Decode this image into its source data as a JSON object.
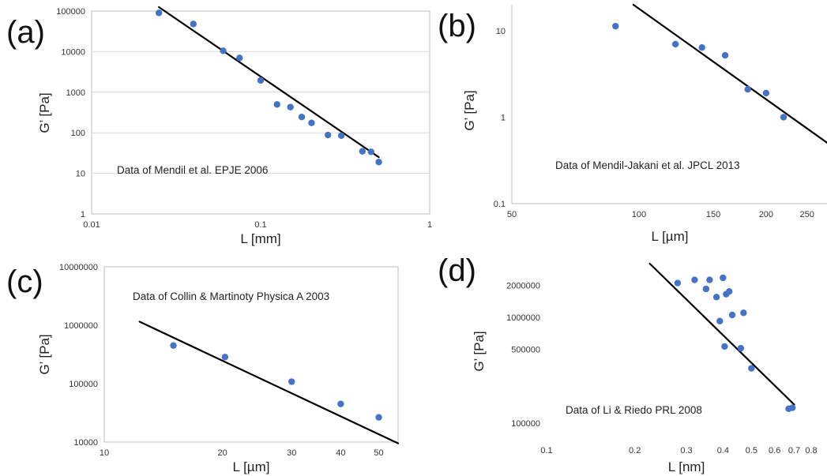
{
  "chart_data": [
    {
      "type": "scatter",
      "panel_label": "(a)",
      "xlabel": "L [mm]",
      "ylabel": "G’ [Pa]",
      "x_scale": "log",
      "y_scale": "log",
      "xlim": [
        0.01,
        1
      ],
      "ylim": [
        1,
        100000
      ],
      "x_ticks": [
        0.01,
        0.1,
        1
      ],
      "x_tick_labels": [
        "0.01",
        "0.1",
        "1"
      ],
      "y_ticks": [
        1,
        10,
        100,
        1000,
        10000,
        100000
      ],
      "y_tick_labels": [
        "1",
        "10",
        "100",
        "1000",
        "10000",
        "100000"
      ],
      "grid": "horizontal",
      "annotation": "Data of Mendil  et al. EPJE 2006",
      "points": {
        "x": [
          0.025,
          0.04,
          0.06,
          0.075,
          0.1,
          0.125,
          0.15,
          0.175,
          0.2,
          0.25,
          0.3,
          0.4,
          0.45,
          0.5
        ],
        "y": [
          90000,
          48000,
          10500,
          7000,
          1950,
          500,
          430,
          245,
          175,
          88,
          85,
          35,
          34,
          19
        ]
      },
      "fit_line": {
        "x": [
          0.025,
          0.5
        ],
        "y": [
          125000,
          25
        ]
      }
    },
    {
      "type": "scatter",
      "panel_label": "(b)",
      "xlabel": "L [µm]",
      "ylabel": "G’ [Pa]",
      "x_scale": "log",
      "y_scale": "log",
      "xlim": [
        50,
        280
      ],
      "ylim": [
        0.1,
        20
      ],
      "x_ticks": [
        50,
        100,
        150,
        200,
        250
      ],
      "x_tick_labels": [
        "50",
        "100",
        "150",
        "200",
        "250"
      ],
      "y_ticks": [
        0.1,
        1,
        10
      ],
      "y_tick_labels": [
        "0.1",
        "1",
        "10"
      ],
      "grid": "none",
      "annotation": "Data of Mendil-Jakani  et al. JPCL 2013",
      "points": {
        "x": [
          88,
          122,
          141,
          160,
          181,
          200,
          220
        ],
        "y": [
          11.3,
          7.0,
          6.4,
          5.2,
          2.1,
          1.9,
          1.0
        ]
      },
      "fit_line": {
        "x": [
          97,
          280
        ],
        "y": [
          20,
          0.5
        ]
      }
    },
    {
      "type": "scatter",
      "panel_label": "(c)",
      "xlabel": "L [µm]",
      "ylabel": "G’ [Pa]",
      "x_scale": "log",
      "y_scale": "log",
      "xlim": [
        10,
        56
      ],
      "ylim": [
        10000,
        10000000
      ],
      "x_ticks": [
        10,
        20,
        30,
        40,
        50
      ],
      "x_tick_labels": [
        "10",
        "20",
        "30",
        "40",
        "50"
      ],
      "y_ticks": [
        10000,
        100000,
        1000000,
        10000000
      ],
      "y_tick_labels": [
        "10000",
        "100000",
        "1000000",
        "10000000"
      ],
      "grid": "none",
      "annotation": "Data of Collin & Martinoty Physica A 2003",
      "points": {
        "x": [
          15,
          20.3,
          30,
          40,
          50
        ],
        "y": [
          450000,
          285000,
          108000,
          45000,
          26500
        ]
      },
      "fit_line": {
        "x": [
          12.3,
          56
        ],
        "y": [
          1150000,
          9500
        ]
      }
    },
    {
      "type": "scatter",
      "panel_label": "(d)",
      "xlabel": "L [nm]",
      "ylabel": "G’ [Pa]",
      "x_scale": "log",
      "y_scale": "log",
      "xlim": [
        0.1,
        0.9
      ],
      "ylim": [
        70000,
        3200000
      ],
      "x_ticks": [
        0.1,
        0.2,
        0.3,
        0.4,
        0.5,
        0.6,
        0.7,
        0.8
      ],
      "x_tick_labels": [
        "0.1",
        "0.2",
        "0.3",
        "0.4",
        "0.5",
        "0.6",
        "0.7",
        "0.8"
      ],
      "y_ticks": [
        100000,
        500000,
        1000000,
        2000000
      ],
      "y_tick_labels": [
        "100000",
        "500000",
        "1000000",
        "2000000"
      ],
      "grid": "none",
      "annotation": "Data of Li & Riedo PRL 2008",
      "points": {
        "x": [
          0.28,
          0.32,
          0.35,
          0.36,
          0.38,
          0.39,
          0.4,
          0.405,
          0.41,
          0.42,
          0.43,
          0.46,
          0.47,
          0.5,
          0.67,
          0.69
        ],
        "y": [
          2100000,
          2250000,
          1850000,
          2250000,
          1550000,
          920000,
          2350000,
          530000,
          1650000,
          1750000,
          1050000,
          510000,
          1100000,
          330000,
          137000,
          140000
        ]
      },
      "fit_line": {
        "x": [
          0.225,
          0.7
        ],
        "y": [
          3200000,
          150000
        ]
      }
    }
  ]
}
